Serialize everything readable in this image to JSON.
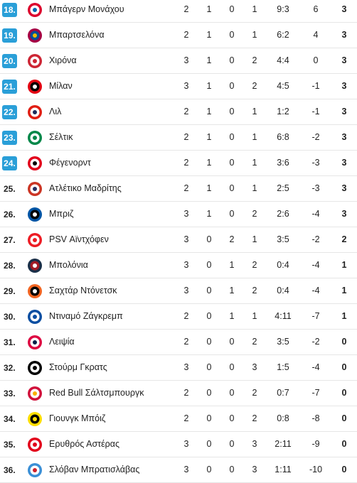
{
  "rows": [
    {
      "rank": "18.",
      "q": true,
      "logo": "bayern-logo",
      "name": "Μπάγερν Μονάχου",
      "played": "2",
      "won": "1",
      "drawn": "0",
      "lost": "1",
      "goals": "9:3",
      "gd": "6",
      "pts": "3",
      "colors": [
        "#dc052d",
        "#ffffff",
        "#0066b2"
      ]
    },
    {
      "rank": "19.",
      "q": true,
      "logo": "barcelona-logo",
      "name": "Μπαρτσελόνα",
      "played": "2",
      "won": "1",
      "drawn": "0",
      "lost": "1",
      "goals": "6:2",
      "gd": "4",
      "pts": "3",
      "colors": [
        "#a50044",
        "#004d98",
        "#edbb00"
      ]
    },
    {
      "rank": "20.",
      "q": true,
      "logo": "girona-logo",
      "name": "Χιρόνα",
      "played": "3",
      "won": "1",
      "drawn": "0",
      "lost": "2",
      "goals": "4:4",
      "gd": "0",
      "pts": "3",
      "colors": [
        "#cd2534",
        "#ffffff",
        "#cd2534"
      ]
    },
    {
      "rank": "21.",
      "q": true,
      "logo": "milan-logo",
      "name": "Μίλαν",
      "played": "3",
      "won": "1",
      "drawn": "0",
      "lost": "2",
      "goals": "4:5",
      "gd": "-1",
      "pts": "3",
      "colors": [
        "#e30613",
        "#000000",
        "#ffffff"
      ]
    },
    {
      "rank": "22.",
      "q": true,
      "logo": "lille-logo",
      "name": "Λιλ",
      "played": "2",
      "won": "1",
      "drawn": "0",
      "lost": "1",
      "goals": "1:2",
      "gd": "-1",
      "pts": "3",
      "colors": [
        "#e01e13",
        "#ffffff",
        "#1b2a5a"
      ]
    },
    {
      "rank": "23.",
      "q": true,
      "logo": "celtic-logo",
      "name": "Σέλτικ",
      "played": "2",
      "won": "1",
      "drawn": "0",
      "lost": "1",
      "goals": "6:8",
      "gd": "-2",
      "pts": "3",
      "colors": [
        "#018749",
        "#ffffff",
        "#018749"
      ]
    },
    {
      "rank": "24.",
      "q": true,
      "logo": "feyenoord-logo",
      "name": "Φέγενορντ",
      "played": "2",
      "won": "1",
      "drawn": "0",
      "lost": "1",
      "goals": "3:6",
      "gd": "-3",
      "pts": "3",
      "colors": [
        "#e2001a",
        "#ffffff",
        "#000000"
      ]
    },
    {
      "rank": "25.",
      "q": false,
      "logo": "atletico-logo",
      "name": "Ατλέτικο Μαδρίτης",
      "played": "2",
      "won": "1",
      "drawn": "0",
      "lost": "1",
      "goals": "2:5",
      "gd": "-3",
      "pts": "3",
      "colors": [
        "#cb3524",
        "#ffffff",
        "#272e61"
      ]
    },
    {
      "rank": "26.",
      "q": false,
      "logo": "brugge-logo",
      "name": "Μπριζ",
      "played": "3",
      "won": "1",
      "drawn": "0",
      "lost": "2",
      "goals": "2:6",
      "gd": "-4",
      "pts": "3",
      "colors": [
        "#0055a5",
        "#000000",
        "#ffffff"
      ]
    },
    {
      "rank": "27.",
      "q": false,
      "logo": "psv-logo",
      "name": "PSV Αϊντχόφεν",
      "played": "3",
      "won": "0",
      "drawn": "2",
      "lost": "1",
      "goals": "3:5",
      "gd": "-2",
      "pts": "2",
      "colors": [
        "#ed1c24",
        "#ffffff",
        "#ed1c24"
      ]
    },
    {
      "rank": "28.",
      "q": false,
      "logo": "bologna-logo",
      "name": "Μπολόνια",
      "played": "3",
      "won": "0",
      "drawn": "1",
      "lost": "2",
      "goals": "0:4",
      "gd": "-4",
      "pts": "1",
      "colors": [
        "#1a2f48",
        "#a21c26",
        "#ffffff"
      ]
    },
    {
      "rank": "29.",
      "q": false,
      "logo": "shakhtar-logo",
      "name": "Σαχτάρ Ντόνετσκ",
      "played": "3",
      "won": "0",
      "drawn": "1",
      "lost": "2",
      "goals": "0:4",
      "gd": "-4",
      "pts": "1",
      "colors": [
        "#f26522",
        "#000000",
        "#ffffff"
      ]
    },
    {
      "rank": "30.",
      "q": false,
      "logo": "dinamo-zagreb-logo",
      "name": "Ντιναμό Ζάγκρεμπ",
      "played": "2",
      "won": "0",
      "drawn": "1",
      "lost": "1",
      "goals": "4:11",
      "gd": "-7",
      "pts": "1",
      "colors": [
        "#0a4ea1",
        "#ffffff",
        "#0a4ea1"
      ]
    },
    {
      "rank": "31.",
      "q": false,
      "logo": "leipzig-logo",
      "name": "Λειψία",
      "played": "2",
      "won": "0",
      "drawn": "0",
      "lost": "2",
      "goals": "3:5",
      "gd": "-2",
      "pts": "0",
      "colors": [
        "#dd0741",
        "#ffffff",
        "#001f47"
      ]
    },
    {
      "rank": "32.",
      "q": false,
      "logo": "sturm-graz-logo",
      "name": "Στούρμ Γκρατς",
      "played": "3",
      "won": "0",
      "drawn": "0",
      "lost": "3",
      "goals": "1:5",
      "gd": "-4",
      "pts": "0",
      "colors": [
        "#000000",
        "#ffffff",
        "#000000"
      ]
    },
    {
      "rank": "33.",
      "q": false,
      "logo": "salzburg-logo",
      "name": "Red Bull Σάλτσμπουργκ",
      "played": "2",
      "won": "0",
      "drawn": "0",
      "lost": "2",
      "goals": "0:7",
      "gd": "-7",
      "pts": "0",
      "colors": [
        "#d0103a",
        "#ffffff",
        "#f9b000"
      ]
    },
    {
      "rank": "34.",
      "q": false,
      "logo": "young-boys-logo",
      "name": "Γιουνγκ Μπόιζ",
      "played": "2",
      "won": "0",
      "drawn": "0",
      "lost": "2",
      "goals": "0:8",
      "gd": "-8",
      "pts": "0",
      "colors": [
        "#fede00",
        "#000000",
        "#fede00"
      ]
    },
    {
      "rank": "35.",
      "q": false,
      "logo": "crvena-zvezda-logo",
      "name": "Ερυθρός Αστέρας",
      "played": "3",
      "won": "0",
      "drawn": "0",
      "lost": "3",
      "goals": "2:11",
      "gd": "-9",
      "pts": "0",
      "colors": [
        "#e2001a",
        "#ffffff",
        "#e2001a"
      ]
    },
    {
      "rank": "36.",
      "q": false,
      "logo": "slovan-logo",
      "name": "Σλόβαν Μπρατισλάβας",
      "played": "3",
      "won": "0",
      "drawn": "0",
      "lost": "3",
      "goals": "1:11",
      "gd": "-10",
      "pts": "0",
      "colors": [
        "#3a8fd6",
        "#ffffff",
        "#d0202a"
      ]
    }
  ]
}
